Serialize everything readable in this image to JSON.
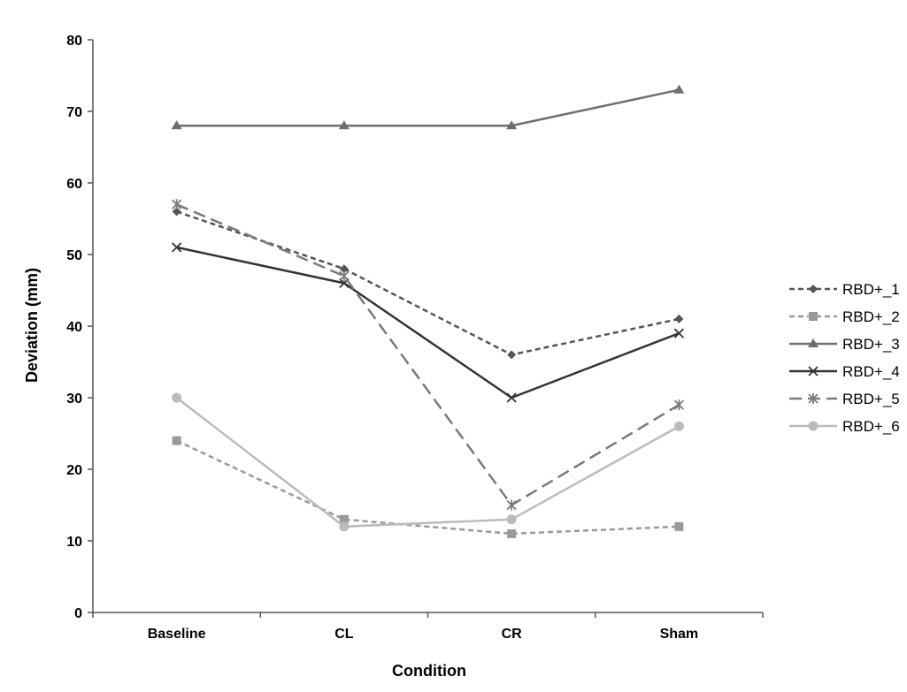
{
  "chart_data": {
    "type": "line",
    "title": "",
    "xlabel": "Condition",
    "ylabel": "Deviation (mm)",
    "categories": [
      "Baseline",
      "CL",
      "CR",
      "Sham"
    ],
    "ylim": [
      0,
      80
    ],
    "yticks": [
      0,
      10,
      20,
      30,
      40,
      50,
      60,
      70,
      80
    ],
    "grid": false,
    "legend_position": "right",
    "series": [
      {
        "name": "RBD+_1",
        "values": [
          56,
          48,
          36,
          41
        ],
        "color": "#555555",
        "dash": "dashed",
        "marker": "diamond"
      },
      {
        "name": "RBD+_2",
        "values": [
          24,
          13,
          11,
          12
        ],
        "color": "#999999",
        "dash": "dashed",
        "marker": "square"
      },
      {
        "name": "RBD+_3",
        "values": [
          68,
          68,
          68,
          73
        ],
        "color": "#6e6e6e",
        "dash": "solid",
        "marker": "triangle"
      },
      {
        "name": "RBD+_4",
        "values": [
          51,
          46,
          30,
          39
        ],
        "color": "#333333",
        "dash": "solid",
        "marker": "x"
      },
      {
        "name": "RBD+_5",
        "values": [
          57,
          47,
          15,
          29
        ],
        "color": "#7a7a7a",
        "dash": "longdash",
        "marker": "star"
      },
      {
        "name": "RBD+_6",
        "values": [
          30,
          12,
          13,
          26
        ],
        "color": "#bbbbbb",
        "dash": "solid",
        "marker": "circle"
      }
    ]
  }
}
